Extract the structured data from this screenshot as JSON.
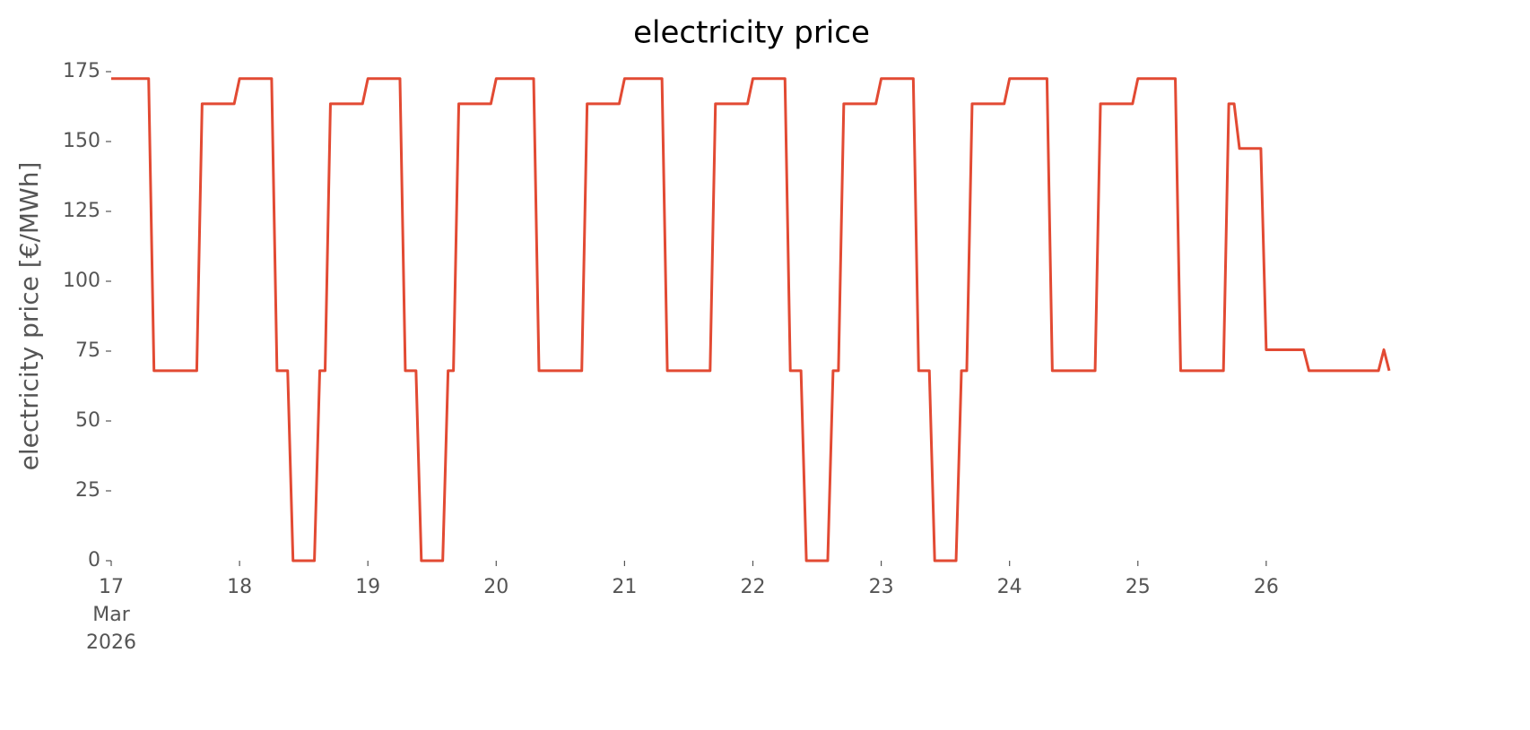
{
  "chart_data": {
    "type": "line",
    "title": "electricity price",
    "ylabel": "electricity price [€/MWh]",
    "x": [
      17,
      17.2917,
      17.3333,
      17.6667,
      17.7083,
      17.9583,
      18,
      18.25,
      18.2917,
      18.375,
      18.4167,
      18.5833,
      18.625,
      18.6667,
      18.7083,
      18.9583,
      19,
      19.25,
      19.2917,
      19.375,
      19.4167,
      19.5833,
      19.625,
      19.6667,
      19.7083,
      19.9583,
      20,
      20.2917,
      20.3333,
      20.6667,
      20.7083,
      20.9583,
      21,
      21.2917,
      21.3333,
      21.6667,
      21.7083,
      21.9583,
      22,
      22.25,
      22.2917,
      22.375,
      22.4167,
      22.5833,
      22.625,
      22.6667,
      22.7083,
      22.9583,
      23,
      23.25,
      23.2917,
      23.375,
      23.4167,
      23.5833,
      23.625,
      23.6667,
      23.7083,
      23.9583,
      24,
      24.2917,
      24.3333,
      24.6667,
      24.7083,
      24.9583,
      25,
      25.2917,
      25.3333,
      25.6667,
      25.7083,
      25.75,
      25.7917,
      25.9583,
      26,
      26.2917,
      26.3333,
      26.875,
      26.9167,
      26.9583
    ],
    "series": [
      {
        "name": "electricity price",
        "color": "#E24A33",
        "values": [
          172.5,
          172.5,
          68,
          68,
          163.5,
          163.5,
          172.5,
          172.5,
          68,
          68,
          0,
          0,
          68,
          68,
          163.5,
          163.5,
          172.5,
          172.5,
          68,
          68,
          0,
          0,
          68,
          68,
          163.5,
          163.5,
          172.5,
          172.5,
          68,
          68,
          163.5,
          163.5,
          172.5,
          172.5,
          68,
          68,
          163.5,
          163.5,
          172.5,
          172.5,
          68,
          68,
          0,
          0,
          68,
          68,
          163.5,
          163.5,
          172.5,
          172.5,
          68,
          68,
          0,
          0,
          68,
          68,
          163.5,
          163.5,
          172.5,
          172.5,
          68,
          68,
          163.5,
          163.5,
          172.5,
          172.5,
          68,
          68,
          163.5,
          163.5,
          147.5,
          147.5,
          75.5,
          75.5,
          68,
          68,
          75.5,
          68
        ]
      }
    ],
    "xlim": [
      17,
      26.9583
    ],
    "xticks": [
      {
        "value": 17,
        "label": "17\nMar\n2026"
      },
      18,
      19,
      20,
      21,
      22,
      23,
      24,
      25,
      26
    ],
    "ylim": [
      0,
      175
    ],
    "yticks": [
      0,
      25,
      50,
      75,
      100,
      125,
      150,
      175
    ],
    "grid": false
  }
}
